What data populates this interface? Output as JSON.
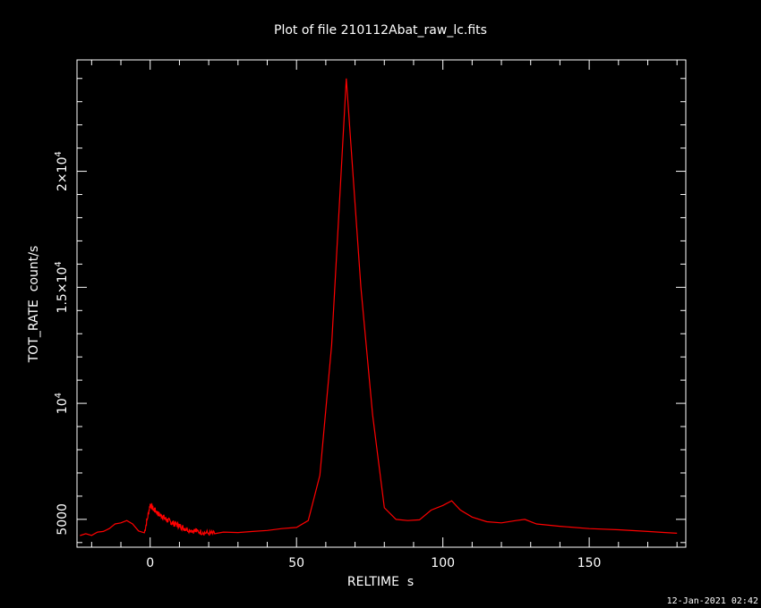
{
  "chart_data": {
    "type": "line",
    "title": "Plot of file 210112Abat_raw_lc.fits",
    "xlabel": "RELTIME  s",
    "ylabel": "TOT_RATE  count/s",
    "xlim": [
      -25,
      183
    ],
    "ylim": [
      3800,
      24800
    ],
    "grid": false,
    "series_color": "#ff0000",
    "axis_color": "#ffffff",
    "x_ticks": [
      {
        "value": 0,
        "label": "0"
      },
      {
        "value": 50,
        "label": "50"
      },
      {
        "value": 100,
        "label": "100"
      },
      {
        "value": 150,
        "label": "150"
      }
    ],
    "y_ticks": [
      {
        "value": 5000,
        "base": "5000",
        "exp": ""
      },
      {
        "value": 10000,
        "base": "10",
        "exp": "4"
      },
      {
        "value": 15000,
        "base": "1.5×10",
        "exp": "4"
      },
      {
        "value": 20000,
        "base": "2×10",
        "exp": "4"
      }
    ],
    "series": [
      {
        "x": [
          -24,
          -22,
          -20,
          -18,
          -16,
          -14,
          -12,
          -10,
          -8,
          -6,
          -4,
          -2,
          -1,
          0,
          1,
          2,
          3,
          4,
          5,
          6,
          7,
          8,
          9,
          10,
          11,
          12,
          14,
          16,
          18,
          20,
          22,
          25,
          30,
          35,
          40,
          45,
          50,
          54,
          58,
          62,
          67,
          72,
          76,
          80,
          84,
          88,
          92,
          96,
          100,
          103,
          106,
          110,
          115,
          120,
          125,
          128,
          132,
          140,
          150,
          160,
          170,
          176,
          180
        ],
        "y": [
          4300,
          4380,
          4310,
          4450,
          4480,
          4600,
          4800,
          4850,
          4950,
          4800,
          4500,
          4420,
          5000,
          5650,
          5450,
          5350,
          5200,
          5150,
          5050,
          4950,
          4900,
          4820,
          4780,
          4720,
          4650,
          4600,
          4530,
          4490,
          4440,
          4400,
          4380,
          4450,
          4430,
          4480,
          4520,
          4600,
          4650,
          4950,
          6900,
          12500,
          24000,
          15000,
          9500,
          5500,
          5000,
          4950,
          4980,
          5400,
          5600,
          5800,
          5400,
          5100,
          4900,
          4850,
          4950,
          5000,
          4800,
          4700,
          4600,
          4550,
          4480,
          4430,
          4400
        ]
      }
    ],
    "footer": "12-Jan-2021 02:42"
  }
}
